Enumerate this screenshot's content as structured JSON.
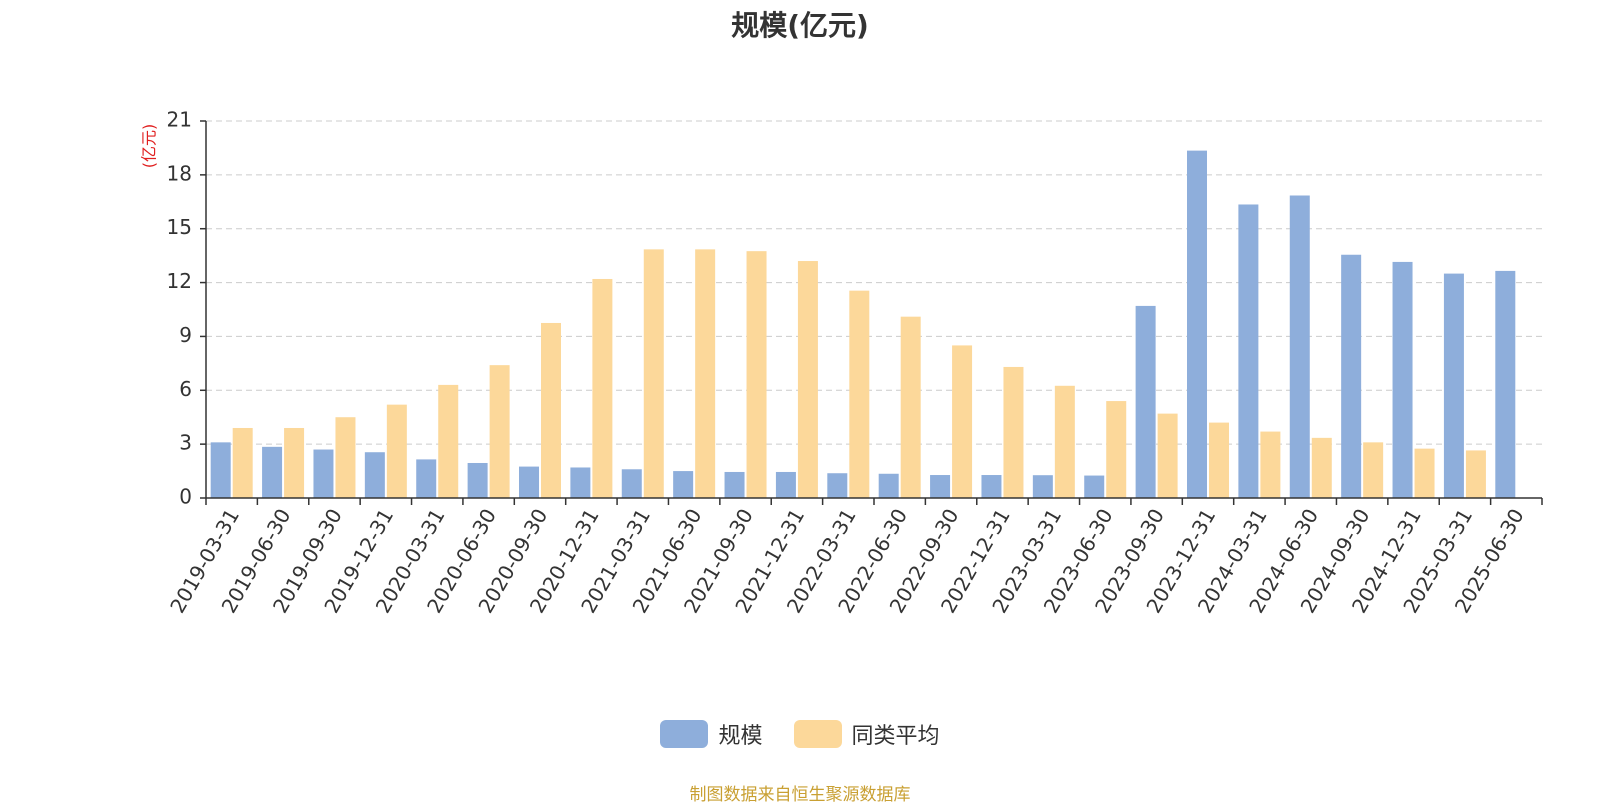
{
  "chart_data": {
    "type": "bar",
    "title": "规模(亿元)",
    "ylabel": "(亿元)",
    "xlabel": "",
    "ylim": [
      0,
      21
    ],
    "yticks": [
      0,
      3,
      6,
      9,
      12,
      15,
      18,
      21
    ],
    "grid": true,
    "legend_position": "bottom",
    "categories": [
      "2019-03-31",
      "2019-06-30",
      "2019-09-30",
      "2019-12-31",
      "2020-03-31",
      "2020-06-30",
      "2020-09-30",
      "2020-12-31",
      "2021-03-31",
      "2021-06-30",
      "2021-09-30",
      "2021-12-31",
      "2022-03-31",
      "2022-06-30",
      "2022-09-30",
      "2022-12-31",
      "2023-03-31",
      "2023-06-30",
      "2023-09-30",
      "2023-12-31",
      "2024-03-31",
      "2024-06-30",
      "2024-09-30",
      "2024-12-31",
      "2025-03-31",
      "2025-06-30"
    ],
    "series": [
      {
        "name": "规模",
        "color": "#8eaedb",
        "values": [
          3.1,
          2.85,
          2.7,
          2.55,
          2.15,
          1.95,
          1.75,
          1.7,
          1.6,
          1.5,
          1.45,
          1.45,
          1.38,
          1.35,
          1.28,
          1.28,
          1.27,
          1.25,
          10.7,
          19.35,
          16.35,
          16.85,
          13.55,
          13.15,
          12.5,
          12.65
        ]
      },
      {
        "name": "同类平均",
        "color": "#fcd89a",
        "values": [
          3.9,
          3.9,
          4.5,
          5.2,
          6.3,
          7.4,
          9.75,
          12.2,
          13.85,
          13.85,
          13.75,
          13.2,
          11.55,
          10.1,
          8.5,
          7.3,
          6.25,
          5.4,
          4.7,
          4.2,
          3.7,
          3.35,
          3.1,
          2.75,
          2.65,
          null
        ]
      }
    ]
  },
  "footer": {
    "source": "制图数据来自恒生聚源数据库"
  }
}
